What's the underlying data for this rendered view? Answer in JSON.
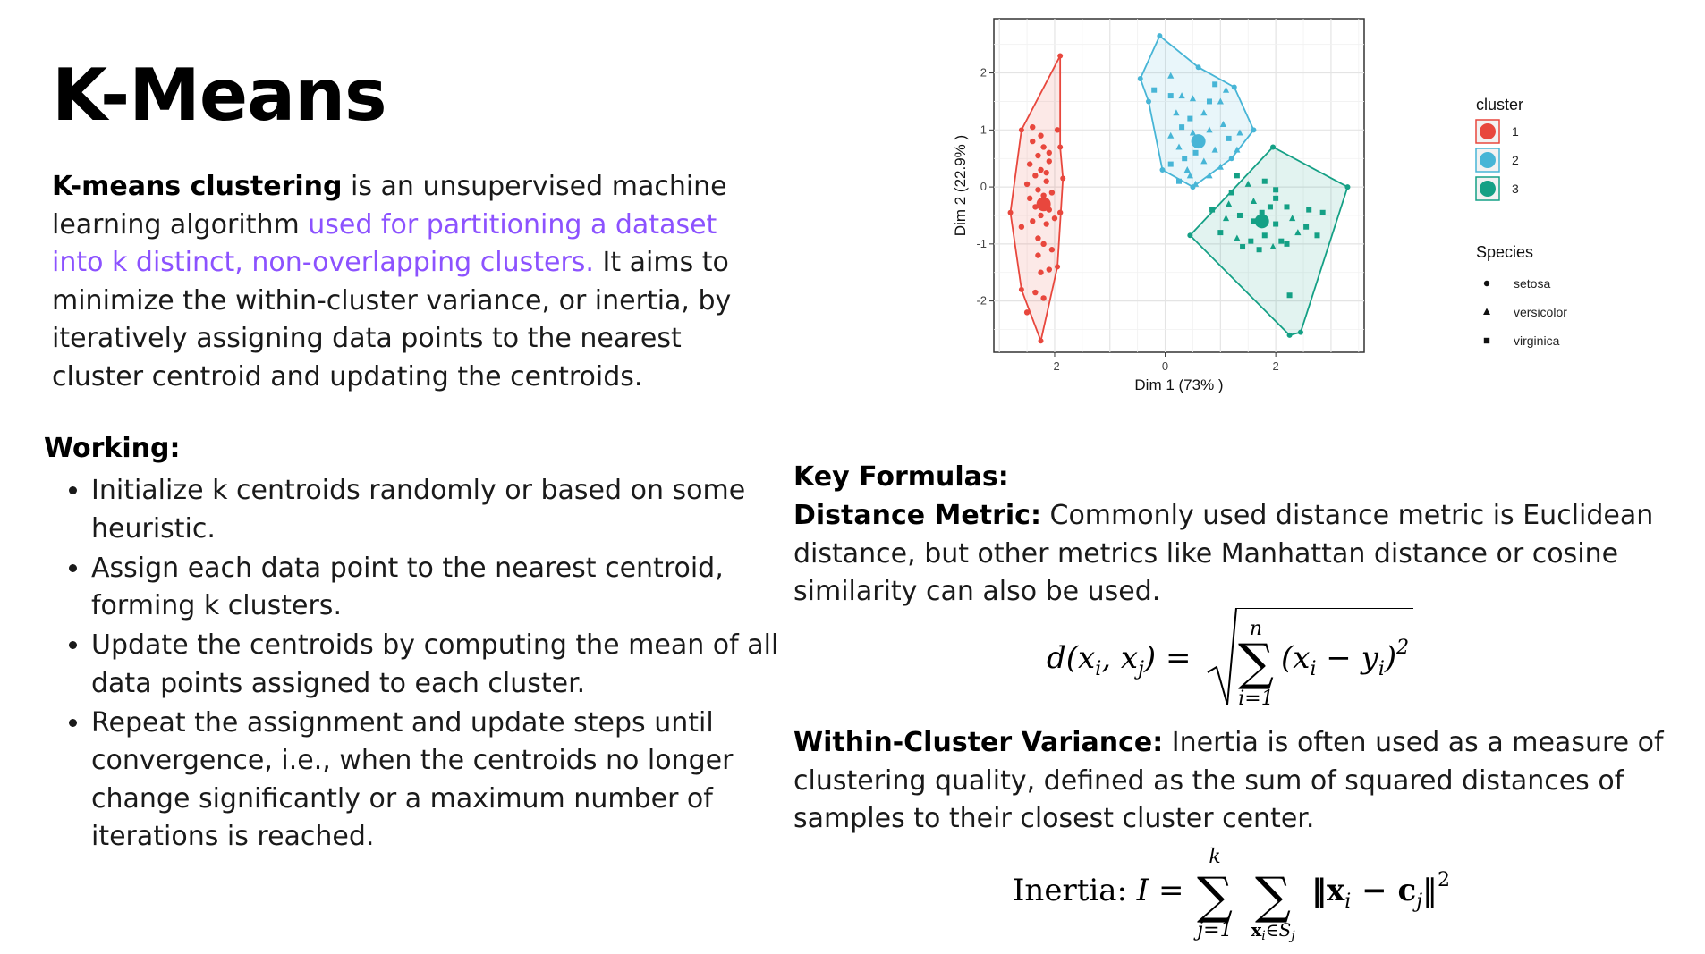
{
  "page": {
    "title": "K-Means",
    "intro": {
      "bold_lead": "K-means clustering",
      "text_1": " is an unsupervised machine learning algorithm ",
      "highlight": "used for partitioning a dataset into k distinct, non-overlapping clusters.",
      "text_2": " It aims to minimize the within-cluster variance, or inertia, by iteratively assigning data points to the nearest cluster centroid and updating the centroids."
    },
    "working": {
      "heading": "Working:",
      "items": [
        "Initialize k centroids randomly or based on some heuristic.",
        "Assign each data point to the nearest centroid, forming k clusters.",
        "Update the centroids by computing the mean of all data points assigned to each cluster.",
        "Repeat the assignment and update steps until convergence, i.e., when the centroids no longer change significantly or a maximum number of iterations is reached."
      ]
    },
    "key_formulas": {
      "heading": "Key Formulas:",
      "distance": {
        "label": "Distance Metric:",
        "text": " Commonly used distance metric is Euclidean distance, but other metrics like Manhattan distance or cosine similarity can also be used.",
        "formula": {
          "lhs": "d(x",
          "sub_i": "i",
          "comma": ", x",
          "sub_j": "j",
          "rhs_close": ") =",
          "sum_top": "n",
          "sum_bottom": "i=1",
          "term": "(x",
          "term_sub": "i",
          "minus": " − y",
          "term_sub2": "i",
          "term_end": ")",
          "power": "2"
        }
      },
      "variance": {
        "label": "Within-Cluster Variance:",
        "text": " Inertia is often used as a measure of clustering quality, defined as the sum of squared distances of samples to their closest cluster center.",
        "formula": {
          "prefix": "Inertia: ",
          "var": "I",
          "equals": " =",
          "sum1_top": "k",
          "sum1_bottom": "j=1",
          "sum2_bottom": "x",
          "sum2_bottom_sub": "i",
          "sum2_bottom_in": "∈S",
          "sum2_bottom_sub2": "j",
          "norm_open": "‖x",
          "norm_sub": "i",
          "norm_minus": " − c",
          "norm_sub2": "j",
          "norm_close": "‖",
          "power": "2"
        }
      }
    }
  },
  "chart_data": {
    "type": "scatter",
    "title": "",
    "xlabel": "Dim 1 (73% )",
    "ylabel": "Dim 2 (22.9% )",
    "xlim": [
      -3.1,
      3.6
    ],
    "ylim": [
      -2.9,
      2.95
    ],
    "x_ticks": [
      -2,
      0,
      2
    ],
    "x_tick_labels": [
      "-2",
      "0",
      "2"
    ],
    "y_ticks": [
      -2,
      -1,
      0,
      1,
      2
    ],
    "y_tick_labels": [
      "-2",
      "-1",
      "0",
      "1",
      "2"
    ],
    "grid": true,
    "legend_placement": "right",
    "legend": {
      "cluster_title": "cluster",
      "cluster_labels": [
        "1",
        "2",
        "3"
      ],
      "species_title": "Species",
      "species_labels": [
        "setosa",
        "versicolor",
        "virginica"
      ]
    },
    "colors": {
      "cluster1": "#e8473d",
      "cluster2": "#47b5d6",
      "cluster3": "#14a085"
    },
    "clusters": [
      {
        "label": "1",
        "centroid": [
          -2.2,
          -0.3
        ],
        "hull": [
          [
            -1.9,
            2.3
          ],
          [
            -2.6,
            1.0
          ],
          [
            -2.8,
            -0.45
          ],
          [
            -2.6,
            -1.8
          ],
          [
            -2.25,
            -2.7
          ],
          [
            -1.95,
            -1.4
          ],
          [
            -1.85,
            0.15
          ],
          [
            -1.9,
            0.7
          ]
        ],
        "points": [
          [
            -2.4,
            0.8
          ],
          [
            -2.2,
            0.7
          ],
          [
            -2.1,
            0.6
          ],
          [
            -2.3,
            0.55
          ],
          [
            -2.45,
            0.4
          ],
          [
            -2.1,
            0.45
          ],
          [
            -2.25,
            0.3
          ],
          [
            -2.35,
            0.2
          ],
          [
            -2.5,
            0.05
          ],
          [
            -2.15,
            0.1
          ],
          [
            -2.3,
            -0.05
          ],
          [
            -2.05,
            -0.1
          ],
          [
            -2.45,
            -0.2
          ],
          [
            -2.2,
            -0.15
          ],
          [
            -2.35,
            -0.35
          ],
          [
            -2.1,
            -0.4
          ],
          [
            -2.25,
            -0.5
          ],
          [
            -2.0,
            -0.55
          ],
          [
            -2.4,
            -0.6
          ],
          [
            -2.15,
            -0.65
          ],
          [
            -1.9,
            -0.45
          ],
          [
            -2.3,
            -0.9
          ],
          [
            -2.2,
            -1.0
          ],
          [
            -2.05,
            -1.1
          ],
          [
            -2.3,
            -1.2
          ],
          [
            -2.1,
            -1.45
          ],
          [
            -2.25,
            -1.5
          ],
          [
            -2.35,
            -1.85
          ],
          [
            -2.2,
            -1.95
          ],
          [
            -2.5,
            -2.2
          ],
          [
            -2.6,
            -0.7
          ],
          [
            -2.25,
            0.9
          ],
          [
            -1.95,
            1.0
          ],
          [
            -2.4,
            1.05
          ],
          [
            -2.15,
            0.25
          ]
        ]
      },
      {
        "label": "2",
        "centroid": [
          0.6,
          0.8
        ],
        "hull": [
          [
            -0.1,
            2.65
          ],
          [
            -0.45,
            1.9
          ],
          [
            -0.3,
            1.5
          ],
          [
            -0.05,
            0.3
          ],
          [
            0.5,
            0.0
          ],
          [
            1.2,
            0.5
          ],
          [
            1.6,
            1.0
          ],
          [
            1.25,
            1.75
          ],
          [
            0.6,
            2.1
          ]
        ],
        "points": [
          [
            0.1,
            1.6
          ],
          [
            0.3,
            1.6
          ],
          [
            0.5,
            1.55
          ],
          [
            0.8,
            1.5
          ],
          [
            1.0,
            1.5
          ],
          [
            0.2,
            1.3
          ],
          [
            0.45,
            1.2
          ],
          [
            0.7,
            1.3
          ],
          [
            1.05,
            1.1
          ],
          [
            0.3,
            1.05
          ],
          [
            0.5,
            0.95
          ],
          [
            0.8,
            1.0
          ],
          [
            1.15,
            0.85
          ],
          [
            0.1,
            0.9
          ],
          [
            0.25,
            0.7
          ],
          [
            0.55,
            0.6
          ],
          [
            0.9,
            0.65
          ],
          [
            1.3,
            0.65
          ],
          [
            0.35,
            0.5
          ],
          [
            0.7,
            0.45
          ],
          [
            1.0,
            0.35
          ],
          [
            0.1,
            0.4
          ],
          [
            0.45,
            0.2
          ],
          [
            0.8,
            0.2
          ],
          [
            0.25,
            0.1
          ],
          [
            0.55,
            0.05
          ],
          [
            0.4,
            0.3
          ],
          [
            0.9,
            1.8
          ],
          [
            0.1,
            1.95
          ],
          [
            1.1,
            1.7
          ],
          [
            -0.2,
            1.7
          ],
          [
            0.65,
            0.8
          ],
          [
            1.35,
            0.95
          ]
        ]
      },
      {
        "label": "3",
        "centroid": [
          1.75,
          -0.6
        ],
        "hull": [
          [
            1.95,
            0.7
          ],
          [
            0.45,
            -0.85
          ],
          [
            2.25,
            -2.6
          ],
          [
            2.45,
            -2.55
          ],
          [
            3.3,
            0.0
          ]
        ],
        "points": [
          [
            1.3,
            0.2
          ],
          [
            1.5,
            0.05
          ],
          [
            1.8,
            0.1
          ],
          [
            2.0,
            -0.05
          ],
          [
            1.2,
            -0.1
          ],
          [
            1.6,
            -0.25
          ],
          [
            1.9,
            -0.35
          ],
          [
            2.2,
            -0.35
          ],
          [
            0.85,
            -0.4
          ],
          [
            1.1,
            -0.55
          ],
          [
            1.35,
            -0.5
          ],
          [
            1.6,
            -0.6
          ],
          [
            2.0,
            -0.65
          ],
          [
            2.3,
            -0.55
          ],
          [
            2.6,
            -0.4
          ],
          [
            2.85,
            -0.45
          ],
          [
            1.0,
            -0.8
          ],
          [
            1.3,
            -0.9
          ],
          [
            1.55,
            -0.95
          ],
          [
            1.8,
            -0.85
          ],
          [
            2.1,
            -0.95
          ],
          [
            2.4,
            -0.8
          ],
          [
            2.75,
            -0.85
          ],
          [
            1.4,
            -1.05
          ],
          [
            1.7,
            -1.1
          ],
          [
            1.95,
            -1.05
          ],
          [
            2.2,
            -1.0
          ],
          [
            2.25,
            -1.9
          ],
          [
            2.0,
            -0.2
          ],
          [
            1.15,
            -0.3
          ],
          [
            2.55,
            -0.7
          ],
          [
            1.75,
            -0.45
          ]
        ]
      }
    ]
  }
}
